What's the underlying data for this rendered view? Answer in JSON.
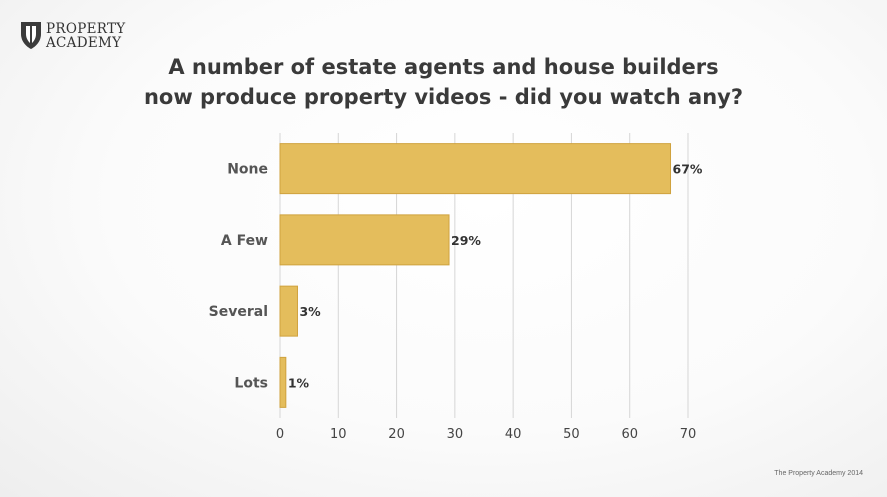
{
  "logo": {
    "line1": "PROPERTY",
    "line2": "ACADEMY"
  },
  "title": {
    "line1": "A number of estate agents and house builders",
    "line2": "now produce property videos - did you watch any?"
  },
  "chart_data": {
    "type": "bar",
    "orientation": "horizontal",
    "categories": [
      "None",
      "A Few",
      "Several",
      "Lots"
    ],
    "values": [
      67,
      29,
      3,
      1
    ],
    "value_labels": [
      "67%",
      "29%",
      "3%",
      "1%"
    ],
    "xticks": [
      "0",
      "10",
      "20",
      "30",
      "40",
      "50",
      "60",
      "70"
    ],
    "xlim": [
      0,
      70
    ],
    "grid": true,
    "legend": "none",
    "bar_color": "#e4bd5c",
    "bar_stroke": "#cfa23e"
  },
  "footer": {
    "text": "The Property Academy 2014"
  }
}
